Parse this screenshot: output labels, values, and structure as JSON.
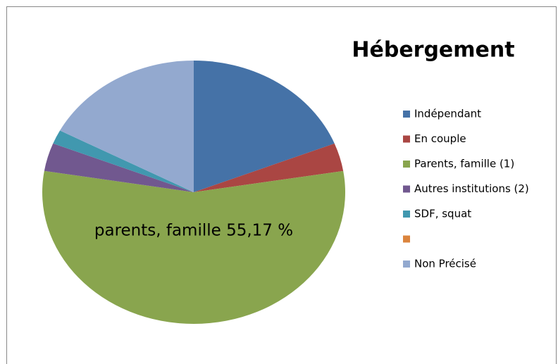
{
  "chart_data": {
    "type": "pie",
    "title": "Hébergement",
    "categories": [
      "Indépendant",
      "En couple",
      "Parents, famille (1)",
      "Autres institutions (2)",
      "SDF, squat",
      null,
      "Non Précisé"
    ],
    "values": [
      18.97,
      3.45,
      55.17,
      3.45,
      1.72,
      0,
      17.24
    ],
    "colors": [
      "#4572a7",
      "#aa4643",
      "#89a54e",
      "#71588f",
      "#4198af",
      "#db843d",
      "#93a9cf"
    ],
    "annotation": "parents, famille 55,17 %",
    "legend": "right"
  }
}
